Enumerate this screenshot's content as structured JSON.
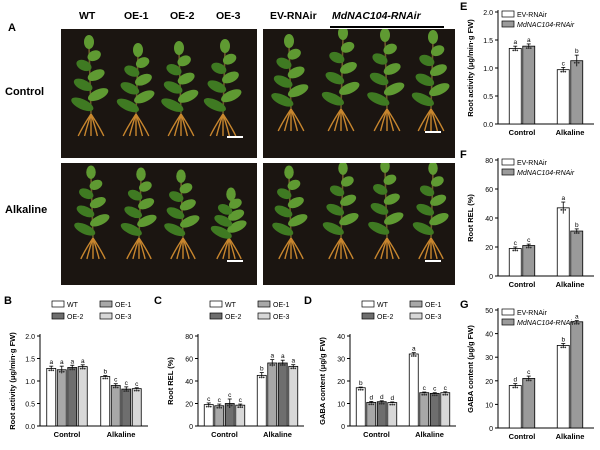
{
  "panel_a": {
    "letter": "A",
    "left_labels": [
      "WT",
      "OE-1",
      "OE-2",
      "OE-3"
    ],
    "right_labels": [
      "EV-RNAir",
      "MdNAC104-RNAir"
    ],
    "rows": [
      "Control",
      "Alkaline"
    ]
  },
  "colors": {
    "photo_bg": "#1b1511",
    "leaf": "#5f9a32",
    "leaf_dark": "#3f7a22",
    "stem": "#6b5a2a",
    "root": "#c8862e",
    "wt_bar": "#ffffff",
    "oe1_bar": "#a8a8a8",
    "oe2_bar": "#6e6e6e",
    "oe3_bar": "#d8d8d8",
    "ev_bar": "#ffffff",
    "rnai_bar": "#9a9a9a"
  },
  "chart_data": [
    {
      "id": "B",
      "type": "bar",
      "letter": "B",
      "ylabel": "Root activity (μg/min·g FW)",
      "ylim": [
        0,
        2.0
      ],
      "yticks": [
        "0.0",
        "0.5",
        "1.0",
        "1.5",
        "2.0"
      ],
      "categories": [
        "Control",
        "Alkaline"
      ],
      "legend": [
        "WT",
        "OE-1",
        "OE-2",
        "OE-3"
      ],
      "legend_placement": "top",
      "series": [
        {
          "name": "WT",
          "values": [
            1.28,
            1.1
          ],
          "err": [
            0.05,
            0.02
          ],
          "letters": [
            "a",
            "b"
          ]
        },
        {
          "name": "OE-1",
          "values": [
            1.25,
            0.9
          ],
          "err": [
            0.08,
            0.04
          ],
          "letters": [
            "a",
            "c"
          ]
        },
        {
          "name": "OE-2",
          "values": [
            1.3,
            0.82
          ],
          "err": [
            0.05,
            0.05
          ],
          "letters": [
            "a",
            "c"
          ]
        },
        {
          "name": "OE-3",
          "values": [
            1.32,
            0.83
          ],
          "err": [
            0.04,
            0.02
          ],
          "letters": [
            "a",
            "c"
          ]
        }
      ]
    },
    {
      "id": "C",
      "type": "bar",
      "letter": "C",
      "ylabel": "Root REL (%)",
      "ylim": [
        0,
        80
      ],
      "yticks": [
        "0",
        "20",
        "40",
        "60",
        "80"
      ],
      "categories": [
        "Control",
        "Alkaline"
      ],
      "legend": [
        "WT",
        "OE-1",
        "OE-2",
        "OE-3"
      ],
      "legend_placement": "top",
      "series": [
        {
          "name": "WT",
          "values": [
            19,
            45
          ],
          "err": [
            1.5,
            2.5
          ],
          "letters": [
            "c",
            "b"
          ]
        },
        {
          "name": "OE-1",
          "values": [
            18,
            56
          ],
          "err": [
            1.5,
            3.0
          ],
          "letters": [
            "c",
            "a"
          ]
        },
        {
          "name": "OE-2",
          "values": [
            20,
            56
          ],
          "err": [
            4.0,
            2.5
          ],
          "letters": [
            "c",
            "a"
          ]
        },
        {
          "name": "OE-3",
          "values": [
            18.5,
            53
          ],
          "err": [
            1.0,
            1.5
          ],
          "letters": [
            "c",
            "a"
          ]
        }
      ]
    },
    {
      "id": "D",
      "type": "bar",
      "letter": "D",
      "ylabel": "GABA content (μg/g FW)",
      "ylim": [
        0,
        40
      ],
      "yticks": [
        "0",
        "10",
        "20",
        "30",
        "40"
      ],
      "categories": [
        "Control",
        "Alkaline"
      ],
      "legend": [
        "WT",
        "OE-1",
        "OE-2",
        "OE-3"
      ],
      "legend_placement": "top",
      "series": [
        {
          "name": "WT",
          "values": [
            17,
            32
          ],
          "err": [
            0.3,
            0.6
          ],
          "letters": [
            "b",
            "a"
          ]
        },
        {
          "name": "OE-1",
          "values": [
            10.5,
            14.8
          ],
          "err": [
            0.4,
            0.3
          ],
          "letters": [
            "d",
            "c"
          ]
        },
        {
          "name": "OE-2",
          "values": [
            10.8,
            14.5
          ],
          "err": [
            0.4,
            0.3
          ],
          "letters": [
            "d",
            "c"
          ]
        },
        {
          "name": "OE-3",
          "values": [
            10.4,
            14.8
          ],
          "err": [
            0.3,
            0.4
          ],
          "letters": [
            "d",
            "c"
          ]
        }
      ]
    },
    {
      "id": "E",
      "type": "bar",
      "letter": "E",
      "ylabel": "Root activity (μg/min·g FW)",
      "ylim": [
        0,
        2.0
      ],
      "yticks": [
        "0.0",
        "0.5",
        "1.0",
        "1.5",
        "2.0"
      ],
      "categories": [
        "Control",
        "Alkaline"
      ],
      "legend": [
        "EV-RNAir",
        "MdNAC104-RNAir"
      ],
      "legend_placement": "top-left",
      "series": [
        {
          "name": "EV-RNAir",
          "values": [
            1.35,
            0.97
          ],
          "err": [
            0.04,
            0.04
          ],
          "letters": [
            "a",
            "c"
          ]
        },
        {
          "name": "MdNAC104-RNAir",
          "values": [
            1.39,
            1.13
          ],
          "err": [
            0.04,
            0.1
          ],
          "letters": [
            "a",
            "b"
          ]
        }
      ]
    },
    {
      "id": "F",
      "type": "bar",
      "letter": "F",
      "ylabel": "Root REL (%)",
      "ylim": [
        0,
        80
      ],
      "yticks": [
        "0",
        "20",
        "40",
        "60",
        "80"
      ],
      "categories": [
        "Control",
        "Alkaline"
      ],
      "legend": [
        "EV-RNAir",
        "MdNAC104-RNAir"
      ],
      "legend_placement": "top-left",
      "series": [
        {
          "name": "EV-RNAir",
          "values": [
            19,
            47
          ],
          "err": [
            1.0,
            4.0
          ],
          "letters": [
            "c",
            "a"
          ]
        },
        {
          "name": "MdNAC104-RNAir",
          "values": [
            21,
            31
          ],
          "err": [
            1.0,
            1.5
          ],
          "letters": [
            "c",
            "b"
          ]
        }
      ]
    },
    {
      "id": "G",
      "type": "bar",
      "letter": "G",
      "ylabel": "GABA content (μg/g FW)",
      "ylim": [
        0,
        50
      ],
      "yticks": [
        "0",
        "10",
        "20",
        "30",
        "40",
        "50"
      ],
      "categories": [
        "Control",
        "Alkaline"
      ],
      "legend": [
        "EV-RNAir",
        "MdNAC104-RNAir"
      ],
      "legend_placement": "top-left",
      "series": [
        {
          "name": "EV-RNAir",
          "values": [
            18,
            35
          ],
          "err": [
            0.8,
            0.8
          ],
          "letters": [
            "d",
            "b"
          ]
        },
        {
          "name": "MdNAC104-RNAir",
          "values": [
            21,
            45
          ],
          "err": [
            1.0,
            0.5
          ],
          "letters": [
            "c",
            "a"
          ]
        }
      ]
    }
  ]
}
